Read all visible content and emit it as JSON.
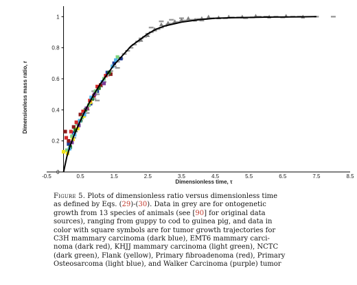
{
  "chart_data": {
    "type": "scatter",
    "xlabel": "Dimensionless time, τ",
    "ylabel": "Dimensionless mass ratio, r",
    "xlim": [
      -0.5,
      8.5
    ],
    "ylim": [
      0,
      1.05
    ],
    "x_ticks": [
      "-0.5",
      "0.5",
      "1.5",
      "2.5",
      "3.5",
      "4.5",
      "5.5",
      "6.5",
      "7.5",
      "8.5"
    ],
    "x_tick_values": [
      -0.5,
      0.5,
      1.5,
      2.5,
      3.5,
      4.5,
      5.5,
      6.5,
      7.5,
      8.5
    ],
    "y_ticks": [
      "0",
      "0.2",
      "0.4",
      "0.6",
      "0.8",
      "1"
    ],
    "y_tick_values": [
      0,
      0.2,
      0.4,
      0.6,
      0.8,
      1
    ],
    "grid": false,
    "legend": "none",
    "model_curve": {
      "color": "#000000",
      "points": [
        [
          0.0,
          0.0
        ],
        [
          0.1,
          0.1
        ],
        [
          0.2,
          0.17
        ],
        [
          0.3,
          0.23
        ],
        [
          0.4,
          0.28
        ],
        [
          0.5,
          0.33
        ],
        [
          0.7,
          0.42
        ],
        [
          0.9,
          0.5
        ],
        [
          1.1,
          0.57
        ],
        [
          1.3,
          0.63
        ],
        [
          1.5,
          0.69
        ],
        [
          1.75,
          0.75
        ],
        [
          2.0,
          0.81
        ],
        [
          2.25,
          0.85
        ],
        [
          2.5,
          0.89
        ],
        [
          2.75,
          0.92
        ],
        [
          3.0,
          0.94
        ],
        [
          3.5,
          0.965
        ],
        [
          4.0,
          0.98
        ],
        [
          4.5,
          0.99
        ],
        [
          5.0,
          0.993
        ],
        [
          6.0,
          0.997
        ],
        [
          7.0,
          0.999
        ],
        [
          7.5,
          1.0
        ]
      ]
    },
    "series": [
      {
        "color": "#9a9a9a",
        "marker": "dash",
        "points": [
          [
            0.5,
            0.33
          ],
          [
            0.6,
            0.36
          ],
          [
            0.7,
            0.4
          ],
          [
            0.8,
            0.44
          ],
          [
            0.9,
            0.47
          ],
          [
            1.0,
            0.5
          ],
          [
            1.1,
            0.55
          ],
          [
            1.2,
            0.58
          ],
          [
            1.3,
            0.62
          ],
          [
            1.4,
            0.65
          ],
          [
            1.5,
            0.68
          ],
          [
            1.6,
            0.71
          ],
          [
            1.7,
            0.73
          ],
          [
            1.8,
            0.76
          ],
          [
            1.9,
            0.78
          ],
          [
            2.0,
            0.8
          ],
          [
            2.1,
            0.82
          ],
          [
            2.2,
            0.84
          ],
          [
            2.3,
            0.86
          ],
          [
            2.4,
            0.87
          ],
          [
            2.5,
            0.89
          ],
          [
            2.6,
            0.9
          ],
          [
            2.7,
            0.91
          ],
          [
            2.8,
            0.92
          ],
          [
            2.9,
            0.93
          ],
          [
            3.0,
            0.94
          ],
          [
            3.1,
            0.95
          ],
          [
            3.2,
            0.955
          ],
          [
            3.3,
            0.96
          ],
          [
            3.4,
            0.965
          ],
          [
            3.5,
            0.97
          ],
          [
            3.6,
            0.975
          ],
          [
            3.7,
            0.975
          ],
          [
            3.8,
            0.98
          ],
          [
            3.9,
            0.98
          ],
          [
            4.0,
            0.985
          ],
          [
            4.2,
            0.985
          ],
          [
            4.4,
            0.99
          ],
          [
            4.6,
            0.99
          ],
          [
            4.8,
            0.99
          ],
          [
            5.0,
            0.995
          ],
          [
            5.2,
            0.995
          ],
          [
            5.4,
            0.99
          ],
          [
            5.6,
            0.995
          ],
          [
            5.8,
            1.0
          ],
          [
            6.0,
            1.0
          ],
          [
            6.3,
            1.0
          ],
          [
            6.5,
            0.995
          ],
          [
            6.8,
            1.0
          ],
          [
            7.0,
            1.0
          ],
          [
            7.5,
            1.0
          ],
          [
            8.0,
            1.0
          ],
          [
            2.9,
            0.97
          ],
          [
            3.2,
            0.98
          ],
          [
            3.5,
            0.99
          ],
          [
            2.6,
            0.93
          ],
          [
            4.1,
            0.975
          ],
          [
            1.0,
            0.46
          ],
          [
            0.9,
            0.52
          ],
          [
            0.7,
            0.38
          ],
          [
            1.6,
            0.67
          ],
          [
            0.3,
            0.22
          ],
          [
            0.35,
            0.26
          ],
          [
            0.4,
            0.28
          ]
        ]
      },
      {
        "color": "#7f7f7f",
        "marker": "triangle",
        "points": [
          [
            2.3,
            0.85
          ],
          [
            2.5,
            0.88
          ],
          [
            2.7,
            0.92
          ],
          [
            2.9,
            0.95
          ],
          [
            3.1,
            0.96
          ],
          [
            3.3,
            0.97
          ],
          [
            3.5,
            0.98
          ],
          [
            3.7,
            0.99
          ],
          [
            3.9,
            0.98
          ],
          [
            4.1,
            0.99
          ],
          [
            4.3,
            1.0
          ],
          [
            4.6,
            0.995
          ],
          [
            4.9,
            1.0
          ],
          [
            5.3,
            1.0
          ],
          [
            5.7,
            1.005
          ],
          [
            6.1,
            1.0
          ],
          [
            6.6,
            1.005
          ],
          [
            7.1,
            1.0
          ]
        ]
      },
      {
        "color": "#1f3a93",
        "marker": "square",
        "points": [
          [
            0.15,
            0.18
          ],
          [
            0.3,
            0.25
          ],
          [
            0.45,
            0.3
          ],
          [
            0.6,
            0.38
          ],
          [
            0.8,
            0.44
          ],
          [
            1.0,
            0.52
          ],
          [
            1.3,
            0.64
          ],
          [
            1.5,
            0.7
          ],
          [
            1.7,
            0.73
          ]
        ]
      },
      {
        "color": "#8b1a1a",
        "marker": "square",
        "points": [
          [
            0.05,
            0.26
          ],
          [
            0.15,
            0.2
          ],
          [
            0.3,
            0.29
          ],
          [
            0.5,
            0.37
          ],
          [
            0.7,
            0.41
          ],
          [
            0.9,
            0.49
          ],
          [
            1.1,
            0.56
          ],
          [
            1.4,
            0.63
          ]
        ]
      },
      {
        "color": "#7ed37e",
        "marker": "square",
        "points": [
          [
            0.1,
            0.14
          ],
          [
            0.25,
            0.23
          ],
          [
            0.4,
            0.31
          ],
          [
            0.55,
            0.35
          ],
          [
            0.75,
            0.43
          ],
          [
            0.95,
            0.52
          ],
          [
            1.2,
            0.6
          ],
          [
            1.6,
            0.74
          ]
        ]
      },
      {
        "color": "#1e7a1e",
        "marker": "square",
        "points": [
          [
            0.2,
            0.16
          ],
          [
            0.35,
            0.27
          ],
          [
            0.5,
            0.33
          ],
          [
            0.65,
            0.4
          ],
          [
            0.85,
            0.47
          ],
          [
            1.05,
            0.54
          ],
          [
            1.35,
            0.64
          ]
        ]
      },
      {
        "color": "#f2e21a",
        "marker": "square",
        "points": [
          [
            0.0,
            0.13
          ],
          [
            0.12,
            0.12
          ],
          [
            0.28,
            0.21
          ],
          [
            0.42,
            0.28
          ],
          [
            0.6,
            0.36
          ],
          [
            0.8,
            0.45
          ]
        ]
      },
      {
        "color": "#d42a2a",
        "marker": "square",
        "points": [
          [
            0.08,
            0.22
          ],
          [
            0.22,
            0.26
          ],
          [
            0.38,
            0.32
          ],
          [
            0.58,
            0.39
          ],
          [
            0.78,
            0.46
          ],
          [
            1.0,
            0.55
          ],
          [
            1.25,
            0.62
          ]
        ]
      },
      {
        "color": "#4fb3e8",
        "marker": "square",
        "points": [
          [
            0.18,
            0.15
          ],
          [
            0.33,
            0.24
          ],
          [
            0.48,
            0.33
          ],
          [
            0.62,
            0.37
          ],
          [
            0.82,
            0.48
          ],
          [
            1.15,
            0.58
          ],
          [
            1.45,
            0.68
          ],
          [
            1.55,
            0.72
          ]
        ]
      },
      {
        "color": "#7d3c98",
        "marker": "square",
        "points": [
          [
            0.25,
            0.19
          ],
          [
            0.45,
            0.3
          ],
          [
            0.68,
            0.41
          ],
          [
            0.92,
            0.5
          ],
          [
            1.2,
            0.57
          ]
        ]
      }
    ]
  },
  "caption": {
    "lines": [
      {
        "parts": [
          {
            "text": "Figure 5.",
            "class": "smallcaps"
          },
          {
            "text": " Plots of dimensionless ratio versus dimensionless time"
          }
        ]
      },
      {
        "parts": [
          {
            "text": "as defined by Eqs. ("
          },
          {
            "text": "29",
            "class": "ref"
          },
          {
            "text": ")-("
          },
          {
            "text": "30",
            "class": "ref"
          },
          {
            "text": ").  Data in grey are for ontogenetic"
          }
        ]
      },
      {
        "parts": [
          {
            "text": "growth from 13 species of animals (see ["
          },
          {
            "text": "90",
            "class": "ref"
          },
          {
            "text": "] for original data"
          }
        ]
      },
      {
        "parts": [
          {
            "text": "sources), ranging from guppy to cod to guinea pig, and data in"
          }
        ]
      },
      {
        "parts": [
          {
            "text": "color with square symbols are for tumor growth trajectories for"
          }
        ]
      },
      {
        "parts": [
          {
            "text": "C3H mammary carcinoma (dark blue), EMT6 mammary carci-"
          }
        ]
      },
      {
        "parts": [
          {
            "text": "noma (dark red), KHJJ mammary carcinoma (light green), NCTC"
          }
        ]
      },
      {
        "parts": [
          {
            "text": "(dark green), Flank (yellow), Primary fibroadenoma (red), Primary"
          }
        ]
      },
      {
        "parts": [
          {
            "text": "Osteosarcoma (light blue), and Walker Carcinoma (purple) tumor"
          }
        ]
      }
    ]
  }
}
